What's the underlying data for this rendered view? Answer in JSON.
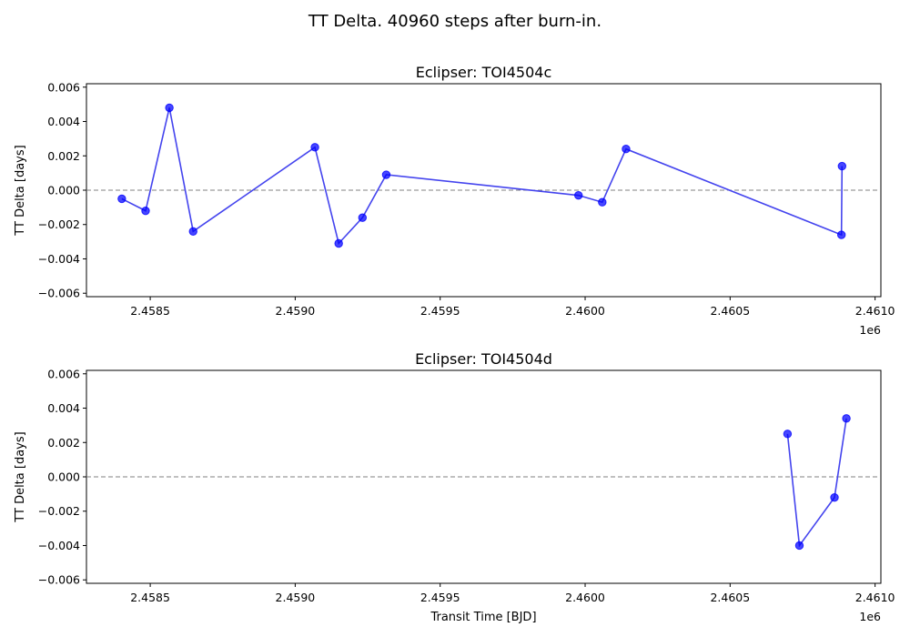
{
  "figure": {
    "suptitle": "TT Delta. 40960 steps after burn-in."
  },
  "style": {
    "series_color": "#0000ff",
    "line_color": "#4444ee",
    "zero_line_color": "#808080"
  },
  "chart_data": [
    {
      "type": "line",
      "title": "Eclipser: TOI4504c",
      "xlabel": "",
      "ylabel": "TT Delta [days]",
      "x_offset_label": "1e6",
      "xlim": [
        2458280,
        2461020
      ],
      "ylim": [
        -0.0062,
        0.0062
      ],
      "xticks": [
        2458500,
        2459000,
        2459500,
        2460000,
        2460500,
        2461000
      ],
      "xtick_labels": [
        "2.4585",
        "2.4590",
        "2.4595",
        "2.4600",
        "2.4605",
        "2.4610"
      ],
      "yticks": [
        -0.006,
        -0.004,
        -0.002,
        0.0,
        0.002,
        0.004,
        0.006
      ],
      "ytick_labels": [
        "−0.006",
        "−0.004",
        "−0.002",
        "0.000",
        "0.002",
        "0.004",
        "0.006"
      ],
      "reference_line_y": 0,
      "x": [
        2458402,
        2458484,
        2458566,
        2458648,
        2459068,
        2459150,
        2459232,
        2459314,
        2459977,
        2460059,
        2460141,
        2460884,
        2461050
      ],
      "y": [
        -0.0005,
        -0.0012,
        0.0048,
        -0.0024,
        0.0025,
        -0.0031,
        -0.0016,
        0.0009,
        -0.0003,
        -0.0007,
        0.0024,
        -0.0026,
        0.0014
      ],
      "x_display": [
        2458402,
        2458484,
        2458566,
        2458648,
        2459068,
        2459150,
        2459232,
        2459314,
        2459977,
        2460059,
        2460141,
        2460884,
        2460886
      ]
    },
    {
      "type": "line",
      "title": "Eclipser: TOI4504d",
      "xlabel": "Transit Time [BJD]",
      "ylabel": "TT Delta [days]",
      "x_offset_label": "1e6",
      "xlim": [
        2458280,
        2461020
      ],
      "ylim": [
        -0.0062,
        0.0062
      ],
      "xticks": [
        2458500,
        2459000,
        2459500,
        2460000,
        2460500,
        2461000
      ],
      "xtick_labels": [
        "2.4585",
        "2.4590",
        "2.4595",
        "2.4600",
        "2.4605",
        "2.4610"
      ],
      "yticks": [
        -0.006,
        -0.004,
        -0.002,
        0.0,
        0.002,
        0.004,
        0.006
      ],
      "ytick_labels": [
        "−0.006",
        "−0.004",
        "−0.002",
        "0.000",
        "0.002",
        "0.004",
        "0.006"
      ],
      "reference_line_y": 0,
      "x": [
        2460698,
        2460739,
        2460860,
        2460901
      ],
      "y": [
        0.0025,
        -0.004,
        -0.0012,
        0.0034
      ]
    }
  ]
}
